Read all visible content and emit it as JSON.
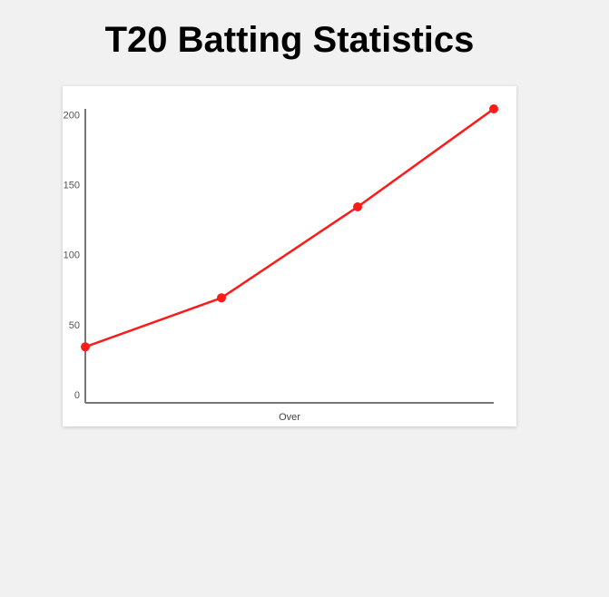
{
  "page": {
    "title": "T20 Batting Statistics"
  },
  "chart_data": {
    "type": "line",
    "title": "T20 Batting Statistics",
    "xlabel": "Over",
    "ylabel": "",
    "ylim": [
      0,
      210
    ],
    "yticks": [
      "0",
      "50",
      "100",
      "150",
      "200"
    ],
    "ytick_values": [
      0,
      50,
      100,
      150,
      200
    ],
    "x": [
      1,
      2,
      3,
      4
    ],
    "series": [
      {
        "values": [
          40,
          75,
          140,
          210
        ],
        "color": "#ff1a1a"
      }
    ],
    "grid": false,
    "legend": "none"
  }
}
